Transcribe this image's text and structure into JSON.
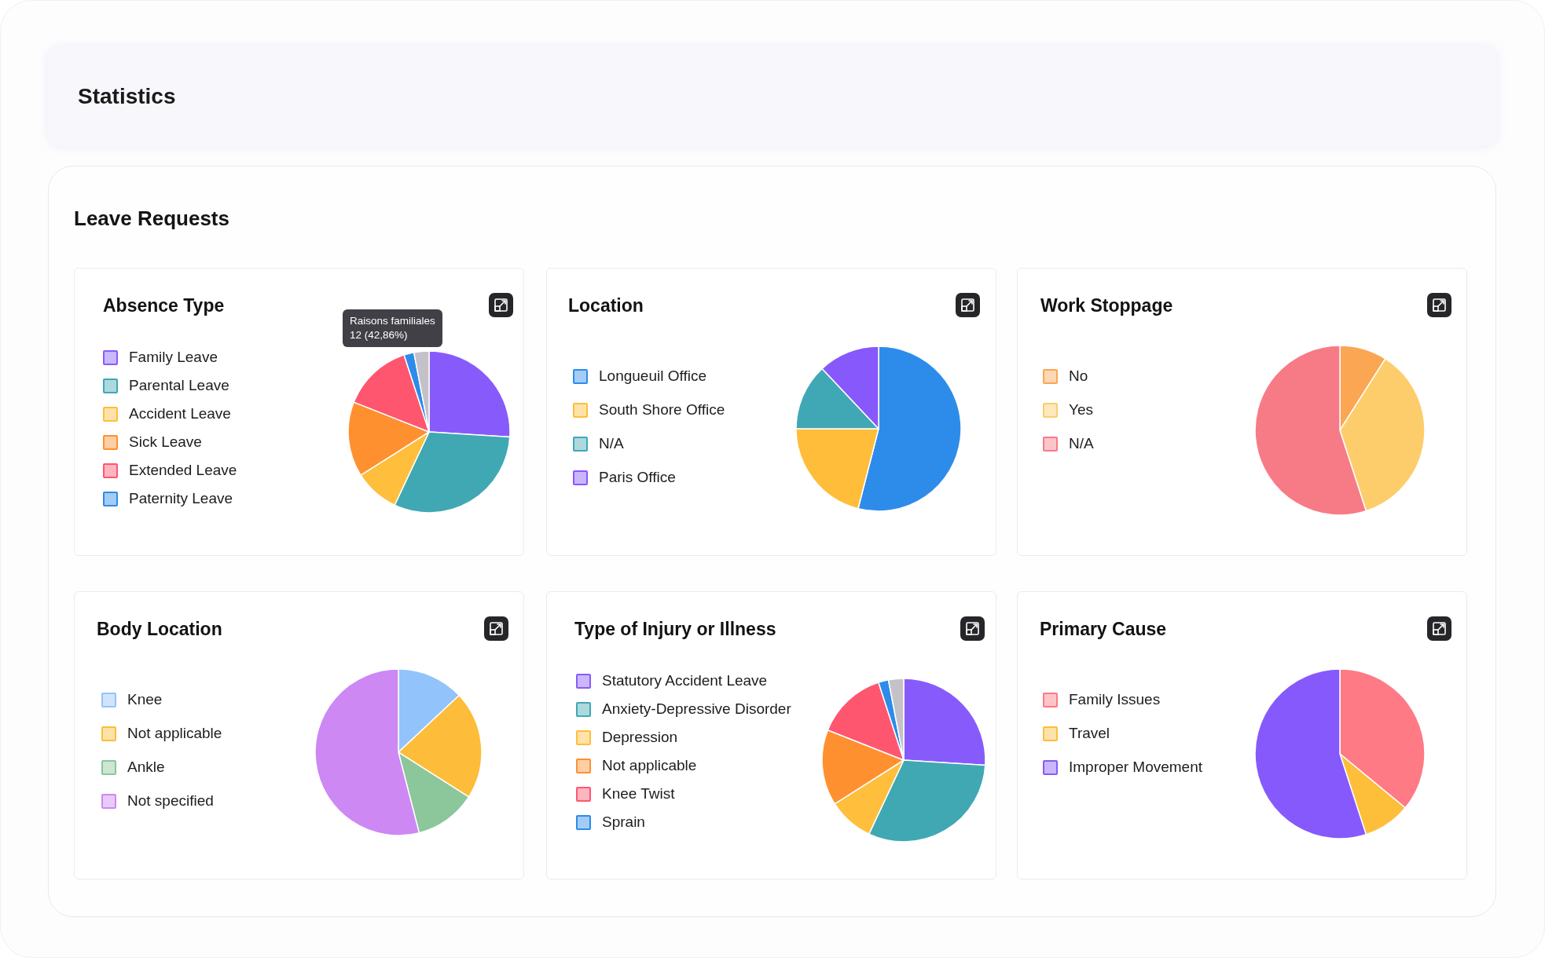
{
  "chart_data": [
    {
      "type": "other",
      "title": "Statistics"
    },
    {
      "type": "other",
      "title": "Leave Requests"
    },
    {
      "type": "pie",
      "title": "Absence Type",
      "categories": [
        "Family Leave",
        "Parental Leave",
        "Accident Leave",
        "Sick Leave",
        "Extended Leave",
        "Paternity Leave",
        null
      ],
      "values": [
        26,
        31,
        9,
        15,
        14,
        2,
        3
      ],
      "colors": [
        "#875bfb",
        "#40a8b3",
        "#ffbe3b",
        "#ff9030",
        "#ff5670",
        "#2d8be9",
        "#c4c2c8"
      ],
      "legend": "left",
      "annotations": [
        "Raisons familiales\n12 (42,86%)"
      ]
    },
    {
      "type": "pie",
      "title": "Location",
      "categories": [
        "Longueuil Office",
        "South Shore Office",
        "N/A",
        "Paris Office"
      ],
      "values": [
        54,
        21,
        13,
        12
      ],
      "colors": [
        "#2d8cea",
        "#ffbd3a",
        "#40a8b4",
        "#8758fc"
      ],
      "legend": "left"
    },
    {
      "type": "pie",
      "title": "Work Stoppage",
      "categories": [
        "No",
        "Yes",
        "N/A"
      ],
      "values": [
        9,
        36,
        55
      ],
      "colors": [
        "#fba653",
        "#fdcd6b",
        "#f77b86"
      ],
      "legend": "left"
    },
    {
      "type": "pie",
      "title": "Body Location",
      "categories": [
        "Knee",
        "Not applicable",
        "Ankle",
        "Not specified"
      ],
      "values": [
        13,
        21,
        12,
        54
      ],
      "colors": [
        "#93c3fb",
        "#fdbd3a",
        "#8bc79a",
        "#cd88f4"
      ],
      "legend": "left"
    },
    {
      "type": "pie",
      "title": "Type of Injury or Illness",
      "categories": [
        "Statutory Accident Leave",
        "Anxiety-Depressive Disorder",
        "Depression",
        "Not applicable",
        "Knee Twist",
        "Sprain",
        null
      ],
      "values": [
        26,
        31,
        9,
        15,
        14,
        2,
        3
      ],
      "colors": [
        "#875bfb",
        "#40a8b3",
        "#ffbe3b",
        "#ff9030",
        "#ff5670",
        "#2d8be9",
        "#c4c2c8"
      ],
      "legend": "left"
    },
    {
      "type": "pie",
      "title": "Primary Cause",
      "categories": [
        "Family Issues",
        "Travel",
        "Improper Movement"
      ],
      "values": [
        36,
        9,
        55
      ],
      "colors": [
        "#fe7a85",
        "#fdbe3a",
        "#8659fc"
      ],
      "legend": "left"
    }
  ]
}
